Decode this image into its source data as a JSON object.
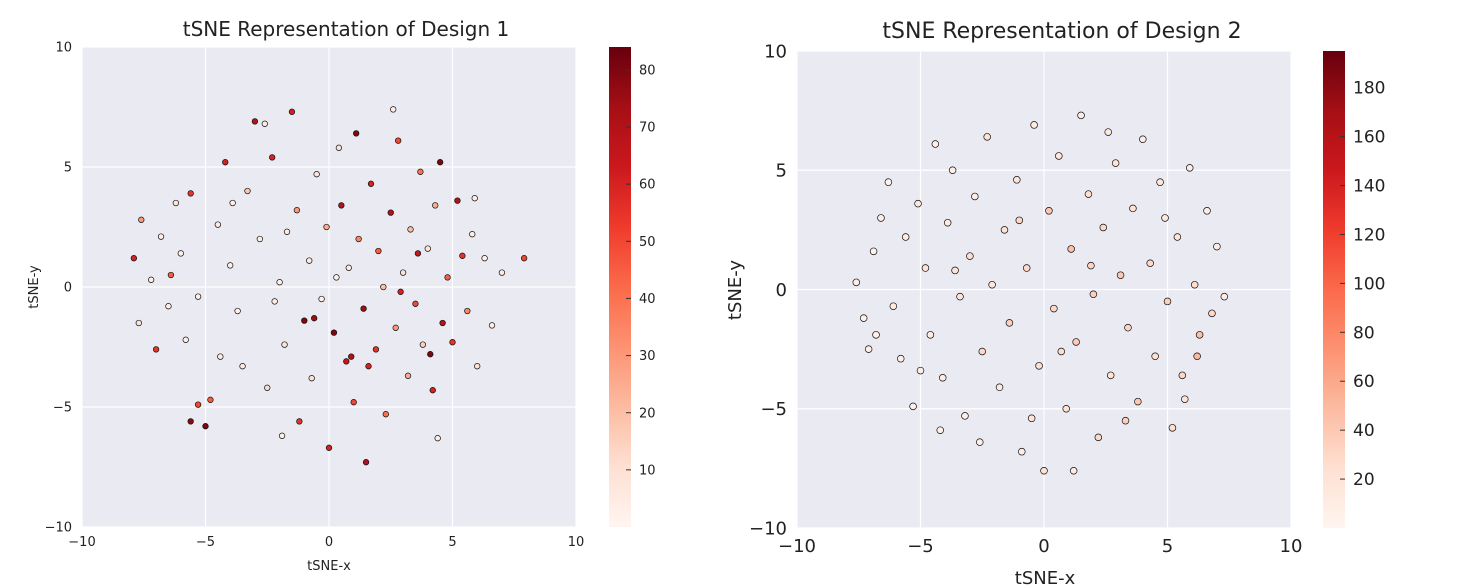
{
  "chart_data": [
    {
      "type": "scatter",
      "title": "tSNE Representation of Design 1",
      "xlabel": "tSNE-x",
      "ylabel": "tSNE-y",
      "xlim": [
        -10,
        10
      ],
      "ylim": [
        -10,
        10
      ],
      "xticks": [
        -10,
        -5,
        0,
        5,
        10
      ],
      "yticks": [
        -10,
        -5,
        0,
        5,
        10
      ],
      "xtick_labels": [
        "−10",
        "−5",
        "0",
        "5",
        "10"
      ],
      "ytick_labels": [
        "−10",
        "−5",
        "0",
        "5",
        "10"
      ],
      "grid": true,
      "colormap": "Reds",
      "colorbar": {
        "min": 0,
        "max": 84,
        "ticks": [
          10,
          20,
          30,
          40,
          50,
          60,
          70,
          80
        ]
      },
      "points": [
        [
          -7.9,
          1.2,
          60
        ],
        [
          -7.6,
          2.8,
          30
        ],
        [
          -7.2,
          0.3,
          5
        ],
        [
          -7.7,
          -1.5,
          10
        ],
        [
          -7.0,
          -2.6,
          55
        ],
        [
          -6.8,
          2.1,
          4
        ],
        [
          -6.5,
          -0.8,
          3
        ],
        [
          -6.2,
          3.5,
          8
        ],
        [
          -6.0,
          1.4,
          2
        ],
        [
          -5.8,
          -2.2,
          4
        ],
        [
          -5.6,
          3.9,
          55
        ],
        [
          -5.3,
          -4.9,
          50
        ],
        [
          -5.6,
          -5.6,
          78
        ],
        [
          -5.0,
          -5.8,
          80
        ],
        [
          -4.8,
          -4.7,
          45
        ],
        [
          -4.5,
          2.6,
          5
        ],
        [
          -4.2,
          5.2,
          60
        ],
        [
          -4.0,
          0.9,
          3
        ],
        [
          -3.7,
          -1.0,
          2
        ],
        [
          -3.5,
          -3.3,
          5
        ],
        [
          -3.3,
          4.0,
          18
        ],
        [
          -3.0,
          6.9,
          70
        ],
        [
          -2.8,
          2.0,
          4
        ],
        [
          -2.5,
          -4.2,
          12
        ],
        [
          -2.3,
          5.4,
          60
        ],
        [
          -2.0,
          0.2,
          2
        ],
        [
          -1.8,
          -2.4,
          8
        ],
        [
          -1.5,
          7.3,
          60
        ],
        [
          -1.3,
          3.2,
          30
        ],
        [
          -1.2,
          -5.6,
          55
        ],
        [
          -1.0,
          -1.4,
          80
        ],
        [
          -0.8,
          1.1,
          5
        ],
        [
          -0.7,
          -3.8,
          10
        ],
        [
          -0.5,
          4.7,
          8
        ],
        [
          -0.3,
          -0.5,
          3
        ],
        [
          -0.1,
          2.5,
          25
        ],
        [
          0.0,
          -6.7,
          60
        ],
        [
          0.2,
          -1.9,
          80
        ],
        [
          0.4,
          5.8,
          10
        ],
        [
          0.5,
          3.4,
          70
        ],
        [
          0.7,
          -3.1,
          65
        ],
        [
          0.8,
          0.8,
          5
        ],
        [
          1.0,
          -4.8,
          50
        ],
        [
          1.1,
          6.4,
          80
        ],
        [
          1.2,
          2.0,
          35
        ],
        [
          1.4,
          -0.9,
          75
        ],
        [
          1.5,
          -7.3,
          70
        ],
        [
          1.7,
          4.3,
          60
        ],
        [
          1.9,
          -2.6,
          55
        ],
        [
          2.0,
          1.5,
          45
        ],
        [
          2.2,
          0.0,
          20
        ],
        [
          2.3,
          -5.3,
          40
        ],
        [
          2.5,
          3.1,
          70
        ],
        [
          2.7,
          -1.7,
          30
        ],
        [
          2.8,
          6.1,
          50
        ],
        [
          3.0,
          0.6,
          10
        ],
        [
          3.2,
          -3.7,
          25
        ],
        [
          3.3,
          2.4,
          20
        ],
        [
          3.5,
          -0.7,
          50
        ],
        [
          3.7,
          4.8,
          40
        ],
        [
          3.8,
          -2.4,
          15
        ],
        [
          4.0,
          1.6,
          8
        ],
        [
          4.2,
          -4.3,
          60
        ],
        [
          4.3,
          3.4,
          25
        ],
        [
          4.5,
          5.2,
          80
        ],
        [
          4.6,
          -1.5,
          70
        ],
        [
          4.8,
          0.4,
          45
        ],
        [
          5.0,
          -2.3,
          55
        ],
        [
          5.2,
          3.6,
          70
        ],
        [
          5.4,
          1.3,
          55
        ],
        [
          5.6,
          -1.0,
          35
        ],
        [
          5.8,
          2.2,
          4
        ],
        [
          6.0,
          -3.3,
          10
        ],
        [
          6.3,
          1.2,
          3
        ],
        [
          6.6,
          -1.6,
          4
        ],
        [
          7.0,
          0.6,
          5
        ],
        [
          7.9,
          1.2,
          50
        ],
        [
          -5.3,
          -0.4,
          3
        ],
        [
          -4.4,
          -2.9,
          4
        ],
        [
          -3.9,
          3.5,
          3
        ],
        [
          -2.2,
          -0.6,
          4
        ],
        [
          -1.7,
          2.3,
          5
        ],
        [
          0.3,
          0.4,
          3
        ],
        [
          1.6,
          -3.3,
          60
        ],
        [
          2.9,
          -0.2,
          60
        ],
        [
          3.6,
          1.4,
          65
        ],
        [
          4.1,
          -2.8,
          80
        ],
        [
          -0.6,
          -1.3,
          75
        ],
        [
          0.9,
          -2.9,
          70
        ],
        [
          -2.6,
          6.8,
          4
        ],
        [
          -1.9,
          -6.2,
          3
        ],
        [
          2.6,
          7.4,
          4
        ],
        [
          4.4,
          -6.3,
          5
        ],
        [
          -6.4,
          0.5,
          45
        ],
        [
          5.9,
          3.7,
          4
        ]
      ]
    },
    {
      "type": "scatter",
      "title": "tSNE Representation of Design 2",
      "xlabel": "tSNE-x",
      "ylabel": "tSNE-y",
      "xlim": [
        -10,
        10
      ],
      "ylim": [
        -10,
        10
      ],
      "xticks": [
        -10,
        -5,
        0,
        5,
        10
      ],
      "yticks": [
        -10,
        -5,
        0,
        5,
        10
      ],
      "xtick_labels": [
        "−10",
        "−5",
        "0",
        "5",
        "10"
      ],
      "ytick_labels": [
        "−10",
        "−5",
        "0",
        "5",
        "10"
      ],
      "grid": true,
      "colormap": "Reds",
      "colorbar": {
        "min": 0,
        "max": 195,
        "ticks": [
          20,
          40,
          60,
          80,
          100,
          120,
          140,
          160,
          180
        ]
      },
      "points": [
        [
          -7.6,
          0.3,
          10
        ],
        [
          -7.3,
          -1.2,
          5
        ],
        [
          -7.1,
          -2.5,
          8
        ],
        [
          -6.9,
          1.6,
          4
        ],
        [
          -6.6,
          3.0,
          6
        ],
        [
          -6.3,
          4.5,
          5
        ],
        [
          -6.1,
          -0.7,
          12
        ],
        [
          -5.8,
          -2.9,
          7
        ],
        [
          -5.6,
          2.2,
          9
        ],
        [
          -5.3,
          -4.9,
          6
        ],
        [
          -5.1,
          3.6,
          15
        ],
        [
          -4.8,
          0.9,
          20
        ],
        [
          -4.6,
          -1.9,
          8
        ],
        [
          -4.4,
          6.1,
          5
        ],
        [
          -4.1,
          -3.7,
          10
        ],
        [
          -3.9,
          2.8,
          12
        ],
        [
          -3.7,
          5.0,
          8
        ],
        [
          -3.4,
          -0.3,
          18
        ],
        [
          -3.2,
          -5.3,
          7
        ],
        [
          -3.0,
          1.4,
          25
        ],
        [
          -2.8,
          3.9,
          10
        ],
        [
          -2.5,
          -2.6,
          30
        ],
        [
          -2.3,
          6.4,
          20
        ],
        [
          -2.1,
          0.2,
          15
        ],
        [
          -1.8,
          -4.1,
          12
        ],
        [
          -1.6,
          2.5,
          22
        ],
        [
          -1.4,
          -1.4,
          35
        ],
        [
          -1.1,
          4.6,
          18
        ],
        [
          -0.9,
          -6.8,
          10
        ],
        [
          -0.7,
          0.9,
          28
        ],
        [
          -0.4,
          6.9,
          12
        ],
        [
          -0.2,
          -3.2,
          24
        ],
        [
          0.0,
          -7.6,
          20
        ],
        [
          0.2,
          3.3,
          40
        ],
        [
          0.4,
          -0.8,
          30
        ],
        [
          0.6,
          5.6,
          15
        ],
        [
          0.9,
          -5.0,
          22
        ],
        [
          1.1,
          1.7,
          45
        ],
        [
          1.3,
          -2.2,
          38
        ],
        [
          1.5,
          7.3,
          10
        ],
        [
          1.8,
          4.0,
          25
        ],
        [
          2.0,
          -0.2,
          35
        ],
        [
          2.2,
          -6.2,
          28
        ],
        [
          2.4,
          2.6,
          30
        ],
        [
          2.7,
          -3.6,
          20
        ],
        [
          2.9,
          5.3,
          18
        ],
        [
          3.1,
          0.6,
          40
        ],
        [
          3.4,
          -1.6,
          33
        ],
        [
          3.6,
          3.4,
          22
        ],
        [
          3.8,
          -4.7,
          40
        ],
        [
          4.0,
          6.3,
          12
        ],
        [
          4.3,
          1.1,
          28
        ],
        [
          4.5,
          -2.8,
          24
        ],
        [
          4.7,
          4.5,
          16
        ],
        [
          5.0,
          -0.5,
          35
        ],
        [
          5.2,
          -5.8,
          25
        ],
        [
          5.4,
          2.2,
          20
        ],
        [
          5.6,
          -3.6,
          30
        ],
        [
          5.9,
          5.1,
          10
        ],
        [
          6.1,
          0.2,
          25
        ],
        [
          6.3,
          -1.9,
          45
        ],
        [
          6.6,
          3.3,
          8
        ],
        [
          6.8,
          -1.0,
          30
        ],
        [
          7.0,
          1.8,
          10
        ],
        [
          7.3,
          -0.3,
          12
        ],
        [
          -6.8,
          -1.9,
          6
        ],
        [
          -5.0,
          -3.4,
          9
        ],
        [
          -2.6,
          -6.4,
          8
        ],
        [
          -1.0,
          2.9,
          30
        ],
        [
          0.7,
          -2.6,
          26
        ],
        [
          1.9,
          1.0,
          32
        ],
        [
          3.3,
          -5.5,
          36
        ],
        [
          4.9,
          3.0,
          14
        ],
        [
          6.2,
          -2.8,
          50
        ],
        [
          -3.6,
          0.8,
          20
        ],
        [
          -0.5,
          -5.4,
          18
        ],
        [
          2.6,
          6.6,
          14
        ],
        [
          5.7,
          -4.6,
          22
        ],
        [
          -4.2,
          -5.9,
          7
        ],
        [
          1.2,
          -7.6,
          12
        ]
      ]
    }
  ]
}
